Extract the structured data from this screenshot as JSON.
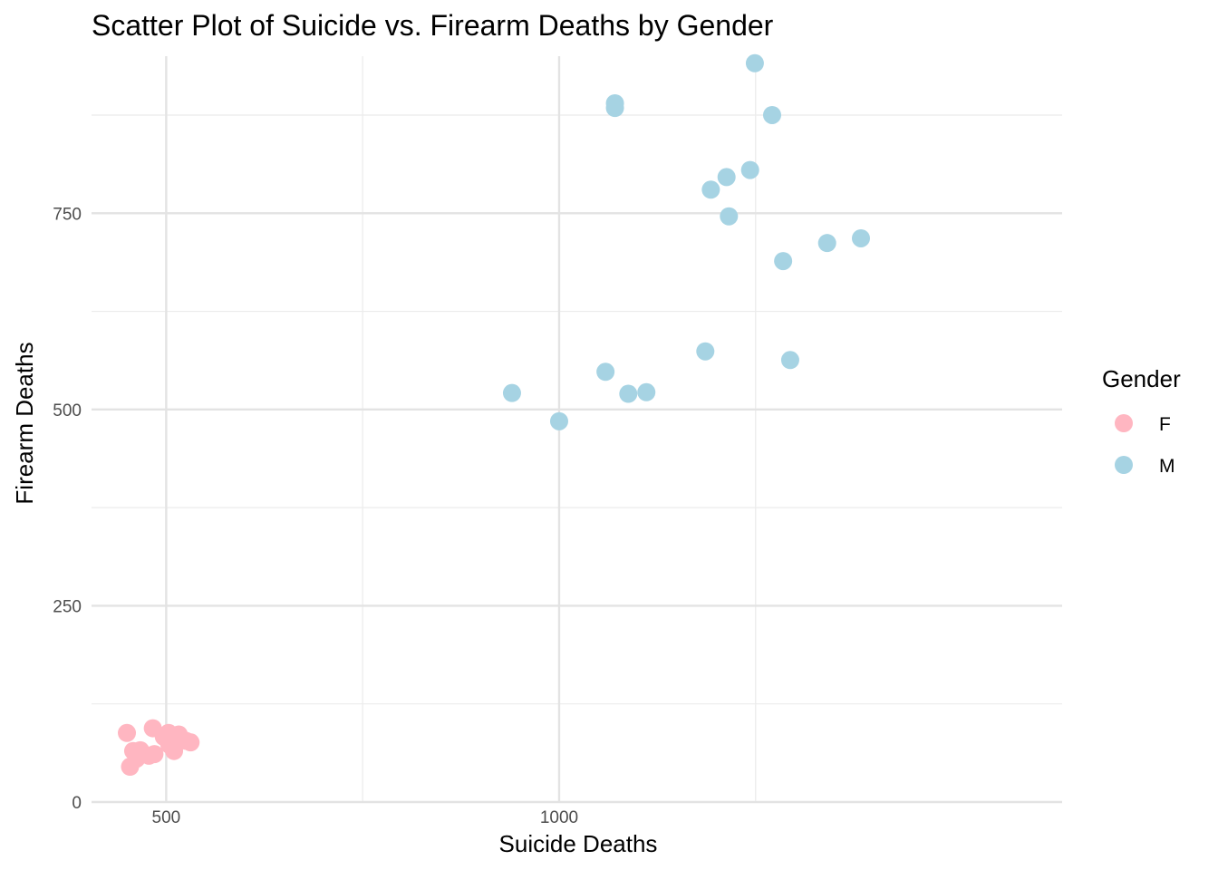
{
  "chart_data": {
    "type": "scatter",
    "title": "Scatter Plot of Suicide vs. Firearm Deaths by Gender",
    "xlabel": "Suicide Deaths",
    "ylabel": "Firearm Deaths",
    "xlim": [
      405,
      1640
    ],
    "ylim": [
      0,
      950
    ],
    "x_ticks": [
      500,
      1000
    ],
    "y_ticks": [
      0,
      250,
      500,
      750
    ],
    "grid": true,
    "legend": {
      "title": "Gender",
      "position": "right",
      "entries": [
        {
          "label": "F",
          "color": "#FFB6C1"
        },
        {
          "label": "M",
          "color": "#A6D3E3"
        }
      ]
    },
    "series": [
      {
        "name": "F",
        "color": "#FFB6C1",
        "points": [
          [
            450,
            88
          ],
          [
            454,
            45
          ],
          [
            458,
            65
          ],
          [
            462,
            55
          ],
          [
            467,
            66
          ],
          [
            471,
            61
          ],
          [
            478,
            59
          ],
          [
            483,
            94
          ],
          [
            485,
            61
          ],
          [
            497,
            83
          ],
          [
            503,
            88
          ],
          [
            504,
            73
          ],
          [
            507,
            79
          ],
          [
            510,
            82
          ],
          [
            510,
            65
          ],
          [
            516,
            86
          ],
          [
            525,
            78
          ],
          [
            531,
            76
          ]
        ]
      },
      {
        "name": "M",
        "color": "#A6D3E3",
        "points": [
          [
            940,
            521
          ],
          [
            1000,
            485
          ],
          [
            1059,
            548
          ],
          [
            1071,
            890
          ],
          [
            1071,
            884
          ],
          [
            1088,
            520
          ],
          [
            1111,
            522
          ],
          [
            1186,
            574
          ],
          [
            1193,
            780
          ],
          [
            1213,
            796
          ],
          [
            1216,
            746
          ],
          [
            1243,
            805
          ],
          [
            1249,
            941
          ],
          [
            1271,
            875
          ],
          [
            1285,
            689
          ],
          [
            1294,
            563
          ],
          [
            1341,
            712
          ],
          [
            1384,
            718
          ]
        ]
      }
    ]
  }
}
